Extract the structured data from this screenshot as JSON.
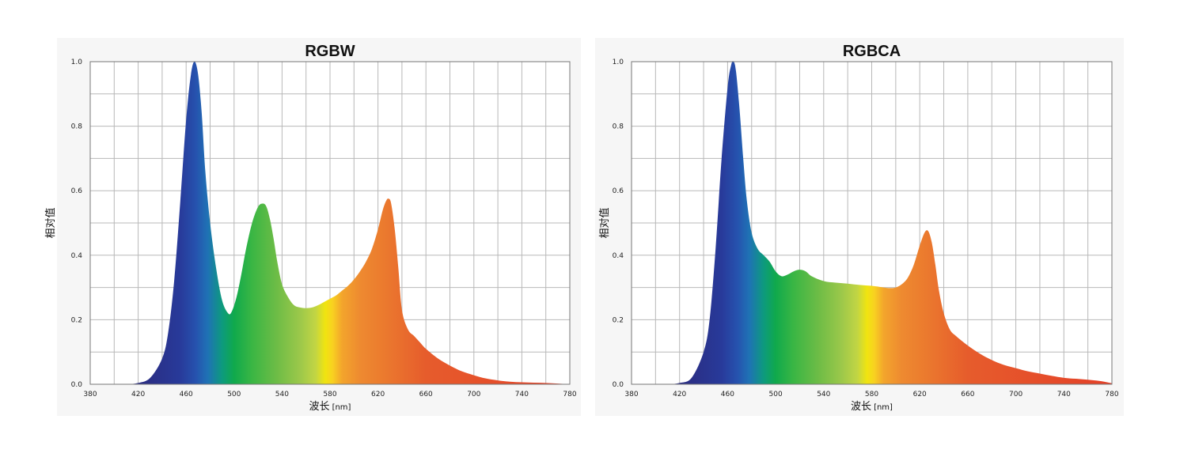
{
  "chart_data": [
    {
      "type": "area",
      "title": "RGBW",
      "xlabel": "波长",
      "xlabel_unit": "[nm]",
      "ylabel": "相对值",
      "xlim": [
        380,
        780
      ],
      "ylim": [
        0,
        1.0
      ],
      "x_ticks": [
        "380",
        "420",
        "460",
        "500",
        "540",
        "580",
        "620",
        "660",
        "700",
        "740",
        "780"
      ],
      "y_ticks": [
        "0.0",
        "0.2",
        "0.4",
        "0.6",
        "0.8",
        "1.0"
      ],
      "grid": true,
      "fill": "visible-spectrum gradient",
      "x": [
        400,
        410,
        420,
        430,
        440,
        445,
        450,
        455,
        460,
        464,
        467,
        470,
        473,
        476,
        480,
        485,
        490,
        495,
        498,
        502,
        506,
        510,
        515,
        520,
        524,
        527,
        530,
        533,
        536,
        540,
        545,
        550,
        555,
        560,
        565,
        570,
        575,
        580,
        585,
        590,
        595,
        600,
        605,
        610,
        615,
        620,
        624,
        627,
        629,
        631,
        634,
        637,
        640,
        645,
        650,
        655,
        660,
        670,
        680,
        690,
        700,
        710,
        720,
        730,
        740,
        750,
        760,
        770,
        780
      ],
      "y": [
        0.0,
        0.0,
        0.004,
        0.02,
        0.08,
        0.16,
        0.32,
        0.56,
        0.82,
        0.96,
        1.0,
        0.96,
        0.84,
        0.66,
        0.5,
        0.36,
        0.26,
        0.22,
        0.225,
        0.27,
        0.34,
        0.42,
        0.5,
        0.55,
        0.56,
        0.55,
        0.51,
        0.45,
        0.38,
        0.31,
        0.27,
        0.245,
        0.238,
        0.236,
        0.238,
        0.245,
        0.255,
        0.265,
        0.275,
        0.29,
        0.305,
        0.325,
        0.35,
        0.38,
        0.42,
        0.48,
        0.54,
        0.57,
        0.575,
        0.56,
        0.48,
        0.36,
        0.23,
        0.17,
        0.15,
        0.13,
        0.11,
        0.08,
        0.058,
        0.04,
        0.028,
        0.018,
        0.012,
        0.008,
        0.006,
        0.005,
        0.004,
        0.002,
        0.0
      ]
    },
    {
      "type": "area",
      "title": "RGBCA",
      "xlabel": "波长",
      "xlabel_unit": "[nm]",
      "ylabel": "相对值",
      "xlim": [
        380,
        780
      ],
      "ylim": [
        0,
        1.0
      ],
      "x_ticks": [
        "380",
        "420",
        "460",
        "500",
        "540",
        "580",
        "620",
        "660",
        "700",
        "740",
        "780"
      ],
      "y_ticks": [
        "0.0",
        "0.2",
        "0.4",
        "0.6",
        "0.8",
        "1.0"
      ],
      "grid": true,
      "fill": "visible-spectrum gradient",
      "x": [
        400,
        410,
        420,
        430,
        440,
        445,
        450,
        455,
        460,
        463,
        465,
        467,
        470,
        473,
        476,
        480,
        485,
        490,
        495,
        500,
        505,
        510,
        515,
        520,
        525,
        530,
        540,
        550,
        560,
        570,
        580,
        590,
        595,
        600,
        605,
        610,
        615,
        620,
        624,
        627,
        630,
        633,
        636,
        640,
        645,
        650,
        660,
        670,
        680,
        690,
        700,
        710,
        720,
        730,
        740,
        750,
        760,
        770,
        780
      ],
      "y": [
        0.0,
        0.0,
        0.004,
        0.02,
        0.1,
        0.2,
        0.42,
        0.7,
        0.92,
        0.99,
        1.0,
        0.97,
        0.85,
        0.7,
        0.57,
        0.47,
        0.42,
        0.4,
        0.38,
        0.35,
        0.335,
        0.34,
        0.35,
        0.355,
        0.35,
        0.335,
        0.32,
        0.315,
        0.312,
        0.308,
        0.305,
        0.3,
        0.298,
        0.3,
        0.31,
        0.33,
        0.37,
        0.43,
        0.47,
        0.475,
        0.44,
        0.37,
        0.29,
        0.22,
        0.17,
        0.15,
        0.12,
        0.095,
        0.075,
        0.06,
        0.05,
        0.04,
        0.033,
        0.026,
        0.02,
        0.017,
        0.014,
        0.01,
        0.003
      ]
    }
  ]
}
